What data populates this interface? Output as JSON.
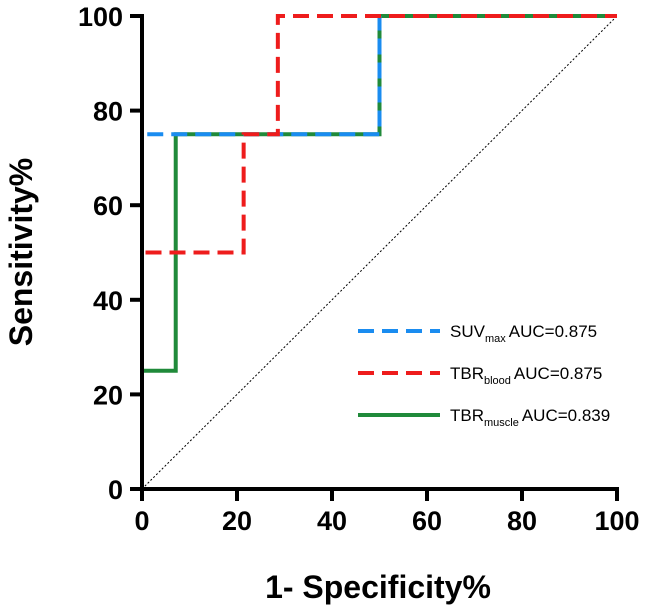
{
  "chart_data": {
    "type": "line",
    "xlabel": "1- Specificity%",
    "ylabel": "Sensitivity%",
    "xlim": [
      0,
      100
    ],
    "ylim": [
      0,
      100
    ],
    "xticks": [
      "0",
      "20",
      "40",
      "60",
      "80",
      "100"
    ],
    "yticks": [
      "0",
      "20",
      "40",
      "60",
      "80",
      "100"
    ],
    "grid": false,
    "legend_position": "bottom-right",
    "reference_line": {
      "x": [
        0,
        100
      ],
      "y": [
        0,
        100
      ],
      "style": "dotted"
    },
    "series": [
      {
        "name": "SUVmax",
        "name_main": "SUV",
        "name_sub": "max",
        "auc_text": "AUC=0.875",
        "color": "#1a8cf0",
        "style": "dashed",
        "x": [
          0,
          0,
          50,
          50,
          100
        ],
        "y": [
          0,
          75,
          75,
          100,
          100
        ]
      },
      {
        "name": "TBRblood",
        "name_main": "TBR",
        "name_sub": "blood",
        "auc_text": "AUC=0.875",
        "color": "#ee1c1c",
        "style": "dashed",
        "x": [
          0,
          0,
          21.4,
          21.4,
          28.6,
          28.6,
          100
        ],
        "y": [
          0,
          50,
          50,
          75,
          75,
          100,
          100
        ]
      },
      {
        "name": "TBRmuscle",
        "name_main": "TBR",
        "name_sub": "muscle",
        "auc_text": "AUC=0.839",
        "color": "#208a3a",
        "style": "solid",
        "x": [
          0,
          0,
          7.1,
          7.1,
          50,
          50,
          100
        ],
        "y": [
          0,
          25,
          25,
          75,
          75,
          100,
          100
        ]
      }
    ]
  }
}
